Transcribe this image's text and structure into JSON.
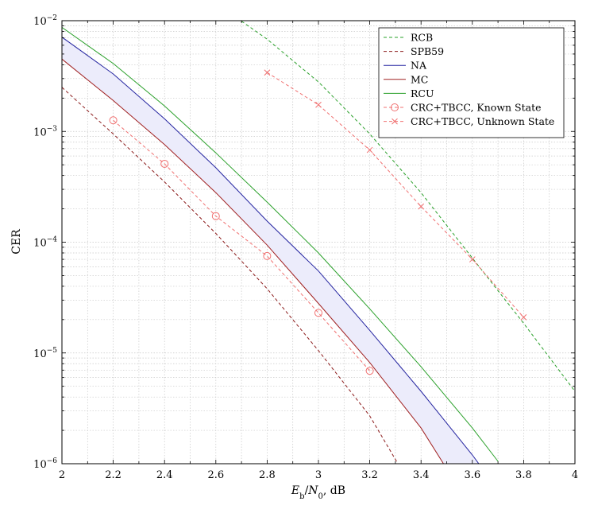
{
  "chart_data": {
    "type": "line",
    "title": "",
    "xlabel": "E_b/N_0, dB",
    "ylabel": "CER",
    "y_scale": "log",
    "xlim": [
      2,
      4
    ],
    "ylim": [
      1e-06,
      0.01
    ],
    "grid": true,
    "legend_position": "top-right",
    "x_ticks": [
      2,
      2.2,
      2.4,
      2.6,
      2.8,
      3,
      3.2,
      3.4,
      3.6,
      3.8,
      4
    ],
    "x_tick_labels": [
      "2",
      "2.2",
      "2.4",
      "2.6",
      "2.8",
      "3",
      "3.2",
      "3.4",
      "3.6",
      "3.8",
      "4"
    ],
    "y_ticks": [
      1e-06,
      1e-05,
      0.0001,
      0.001,
      0.01
    ],
    "y_tick_labels": [
      {
        "base": "10",
        "exp": "−6"
      },
      {
        "base": "10",
        "exp": "−5"
      },
      {
        "base": "10",
        "exp": "−4"
      },
      {
        "base": "10",
        "exp": "−3"
      },
      {
        "base": "10",
        "exp": "−2"
      }
    ],
    "shaded_band": {
      "between": [
        "NA",
        "MC"
      ],
      "color": "#ececfb"
    },
    "series": [
      {
        "name": "RCB",
        "color": "#2aa02a",
        "dash": "dashed",
        "marker": "none",
        "x": [
          2.7,
          2.8,
          3.0,
          3.2,
          3.4,
          3.6,
          3.8,
          4.0
        ],
        "y": [
          0.0099,
          0.0068,
          0.0028,
          0.00095,
          0.00028,
          7.2e-05,
          1.85e-05,
          4.5e-06
        ]
      },
      {
        "name": "SPB59",
        "color": "#8b1a1a",
        "dash": "dashed",
        "marker": "none",
        "x": [
          2.0,
          2.2,
          2.4,
          2.6,
          2.8,
          3.0,
          3.2,
          3.31
        ],
        "y": [
          0.0025,
          0.00095,
          0.00035,
          0.00012,
          3.8e-05,
          1.05e-05,
          2.7e-06,
          1e-06
        ]
      },
      {
        "name": "NA",
        "color": "#2424a0",
        "dash": "solid",
        "marker": "none",
        "x": [
          2.0,
          2.2,
          2.4,
          2.6,
          2.8,
          3.0,
          3.2,
          3.4,
          3.6,
          3.7
        ],
        "y": [
          0.0071,
          0.0033,
          0.0013,
          0.00047,
          0.000155,
          5.5e-05,
          1.6e-05,
          4.5e-06,
          1.2e-06,
          5.8e-07
        ]
      },
      {
        "name": "MC",
        "color": "#a02020",
        "dash": "solid",
        "marker": "none",
        "x": [
          2.0,
          2.2,
          2.4,
          2.6,
          2.8,
          3.0,
          3.2,
          3.4,
          3.5
        ],
        "y": [
          0.0045,
          0.0019,
          0.00076,
          0.00028,
          9.4e-05,
          2.8e-05,
          8.2e-06,
          2.1e-06,
          9e-07
        ]
      },
      {
        "name": "RCU",
        "color": "#2aa02a",
        "dash": "solid",
        "marker": "none",
        "x": [
          2.0,
          2.2,
          2.4,
          2.6,
          2.8,
          3.0,
          3.2,
          3.4,
          3.6,
          3.7
        ],
        "y": [
          0.0087,
          0.0041,
          0.0017,
          0.00064,
          0.00023,
          8e-05,
          2.5e-05,
          7.5e-06,
          2.1e-06,
          1.05e-06
        ]
      },
      {
        "name": "CRC+TBCC, Known State",
        "color": "#f07070",
        "dash": "dashed",
        "marker": "circle",
        "x": [
          2.2,
          2.4,
          2.6,
          2.8,
          3.0,
          3.2
        ],
        "y": [
          0.00126,
          0.00051,
          0.000172,
          7.5e-05,
          2.3e-05,
          6.9e-06
        ]
      },
      {
        "name": "CRC+TBCC, Unknown State",
        "color": "#f07070",
        "dash": "dashed",
        "marker": "x",
        "x": [
          2.8,
          3.0,
          3.2,
          3.4,
          3.6,
          3.8
        ],
        "y": [
          0.0034,
          0.00174,
          0.00068,
          0.00021,
          7e-05,
          2.1e-05
        ]
      }
    ]
  }
}
